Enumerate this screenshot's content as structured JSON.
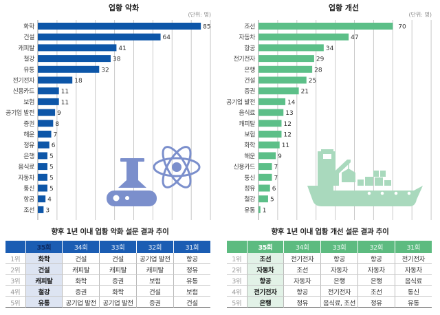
{
  "chart_data": [
    {
      "type": "bar",
      "orientation": "horizontal",
      "title": "업황 악화",
      "unit_label": "(단위: 명)",
      "xlabel": "",
      "ylabel": "",
      "xlim": [
        0,
        90
      ],
      "grid": true,
      "grid_step": 10,
      "color": "#0d56a8",
      "categories": [
        "화학",
        "건설",
        "캐피탈",
        "철강",
        "유통",
        "전기전자",
        "신용카드",
        "보험",
        "공기업 발전",
        "증권",
        "해운",
        "정유",
        "은행",
        "음식료",
        "자동차",
        "통신",
        "항공",
        "조선"
      ],
      "values": [
        85,
        64,
        41,
        38,
        32,
        18,
        11,
        11,
        9,
        8,
        7,
        6,
        5,
        5,
        5,
        5,
        4,
        3
      ],
      "icon": "flask-and-atom",
      "icon_color": "#7b8fcc"
    },
    {
      "type": "bar",
      "orientation": "horizontal",
      "title": "업황 개선",
      "unit_label": "(단위: 명)",
      "xlabel": "",
      "ylabel": "",
      "xlim": [
        0,
        90
      ],
      "grid": true,
      "grid_step": 10,
      "color": "#5cbf88",
      "categories": [
        "조선",
        "자동차",
        "항공",
        "전기전자",
        "은행",
        "건설",
        "증권",
        "공기업 발전",
        "음식료",
        "캐피탈",
        "보험",
        "화학",
        "해운",
        "신용카드",
        "통신",
        "정유",
        "철강",
        "유통"
      ],
      "values": [
        70,
        47,
        34,
        29,
        28,
        25,
        21,
        14,
        13,
        12,
        12,
        11,
        9,
        7,
        7,
        6,
        5,
        1
      ],
      "icon": "cargo-ship",
      "icon_color": "#a9d9bd"
    }
  ],
  "tables": {
    "left": {
      "title": "향후 1년 이내 업황 악화 설문 결과 추이",
      "headers": [
        "",
        "35회",
        "34회",
        "33회",
        "32회",
        "31회"
      ],
      "rows": [
        [
          "1위",
          "화학",
          "건설",
          "건설",
          "공기업 발전",
          "항공"
        ],
        [
          "2위",
          "건설",
          "캐피탈",
          "캐피탈",
          "캐피탈",
          "정유"
        ],
        [
          "3위",
          "캐피탈",
          "화학",
          "증권",
          "보험",
          "유통"
        ],
        [
          "4위",
          "철강",
          "증권",
          "화학",
          "건설",
          "보험"
        ],
        [
          "5위",
          "유통",
          "공기업 발전",
          "공기업 발전",
          "증권",
          "건설"
        ]
      ]
    },
    "right": {
      "title": "향후 1년 이내 업황 개선 설문 결과 추이",
      "headers": [
        "",
        "35회",
        "34회",
        "33회",
        "32회",
        "31회"
      ],
      "rows": [
        [
          "1위",
          "조선",
          "전기전자",
          "항공",
          "항공",
          "전기전자"
        ],
        [
          "2위",
          "자동차",
          "조선",
          "자동차",
          "자동차",
          "자동차"
        ],
        [
          "3위",
          "항공",
          "자동차",
          "은행",
          "은행",
          "음식료"
        ],
        [
          "4위",
          "전기전자",
          "항공",
          "전기전자",
          "조선",
          "통신"
        ],
        [
          "5위",
          "은행",
          "정유",
          "음식료, 조선",
          "정유",
          "유통"
        ]
      ]
    }
  }
}
